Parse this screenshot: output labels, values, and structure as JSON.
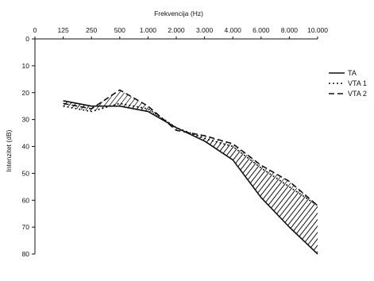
{
  "chart_data": {
    "type": "line",
    "title": "",
    "xlabel": "Frekvencija (Hz)",
    "ylabel": "Intenzitet (dB)",
    "x_axis_position": "top",
    "y_inverted": true,
    "categories": [
      "0",
      "125",
      "250",
      "500",
      "1.000",
      "2.000",
      "3.000",
      "4.000",
      "6.000",
      "8.000",
      "10.000"
    ],
    "yticks": [
      "0",
      "10",
      "20",
      "30",
      "40",
      "50",
      "60",
      "70",
      "80"
    ],
    "ylim": [
      0,
      80
    ],
    "grid": false,
    "legend_position": "right",
    "hatched_fill_between": [
      [
        "TA",
        "VTA 1"
      ],
      [
        "TA",
        "VTA 2"
      ]
    ],
    "series": [
      {
        "name": "TA",
        "style": "solid",
        "x": [
          "125",
          "250",
          "500",
          "1.000",
          "2.000",
          "3.000",
          "4.000",
          "6.000",
          "8.000",
          "10.000"
        ],
        "values": [
          23,
          25,
          25,
          27,
          33,
          38,
          45,
          59,
          70,
          80
        ]
      },
      {
        "name": "VTA 1",
        "style": "dotted",
        "x": [
          "125",
          "250",
          "500",
          "1.000",
          "2.000",
          "3.000",
          "4.000",
          "6.000",
          "8.000",
          "10.000"
        ],
        "values": [
          25,
          27,
          24,
          26,
          33,
          37,
          40,
          48,
          55,
          62
        ]
      },
      {
        "name": "VTA 2",
        "style": "dashed",
        "x": [
          "125",
          "250",
          "500",
          "1.000",
          "2.000",
          "3.000",
          "4.000",
          "6.000",
          "8.000",
          "10.000"
        ],
        "values": [
          24,
          26,
          19,
          25,
          34,
          36,
          39,
          47,
          53,
          62
        ]
      }
    ]
  }
}
